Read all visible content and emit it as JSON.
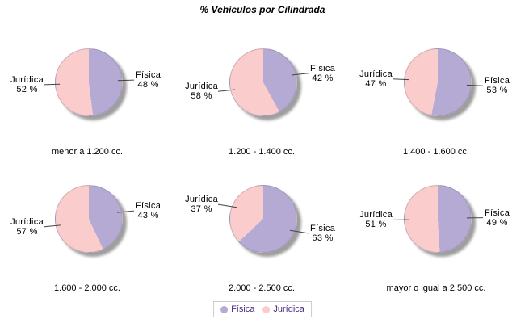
{
  "title": "% Vehículos por Cilindrada",
  "colors": {
    "fisica": "#b5aad4",
    "juridica": "#fbcccc",
    "shadow": "#9e9e9e",
    "leader_line": "#444444",
    "legend_text": "#4b2e83",
    "legend_border": "#cccccc"
  },
  "legend": {
    "items": [
      {
        "label": "Física"
      },
      {
        "label": "Jurídica"
      }
    ]
  },
  "chart_data": {
    "type": "pie",
    "series_names": [
      "Física",
      "Jurídica"
    ],
    "charts": [
      {
        "category": "menor a 1.200 cc.",
        "slices": [
          {
            "label": "Física",
            "value": 48,
            "pct_label": "48 %"
          },
          {
            "label": "Jurídica",
            "value": 52,
            "pct_label": "52 %"
          }
        ]
      },
      {
        "category": "1.200 - 1.400 cc.",
        "slices": [
          {
            "label": "Física",
            "value": 42,
            "pct_label": "42 %"
          },
          {
            "label": "Jurídica",
            "value": 58,
            "pct_label": "58 %"
          }
        ]
      },
      {
        "category": "1.400 - 1.600 cc.",
        "slices": [
          {
            "label": "Física",
            "value": 53,
            "pct_label": "53 %"
          },
          {
            "label": "Jurídica",
            "value": 47,
            "pct_label": "47 %"
          }
        ]
      },
      {
        "category": "1.600 - 2.000 cc.",
        "slices": [
          {
            "label": "Física",
            "value": 43,
            "pct_label": "43 %"
          },
          {
            "label": "Jurídica",
            "value": 57,
            "pct_label": "57 %"
          }
        ]
      },
      {
        "category": "2.000 - 2.500 cc.",
        "slices": [
          {
            "label": "Física",
            "value": 63,
            "pct_label": "63 %"
          },
          {
            "label": "Jurídica",
            "value": 37,
            "pct_label": "37 %"
          }
        ]
      },
      {
        "category": "mayor o igual a 2.500 cc.",
        "slices": [
          {
            "label": "Física",
            "value": 49,
            "pct_label": "49 %"
          },
          {
            "label": "Jurídica",
            "value": 51,
            "pct_label": "51 %"
          }
        ]
      }
    ]
  }
}
